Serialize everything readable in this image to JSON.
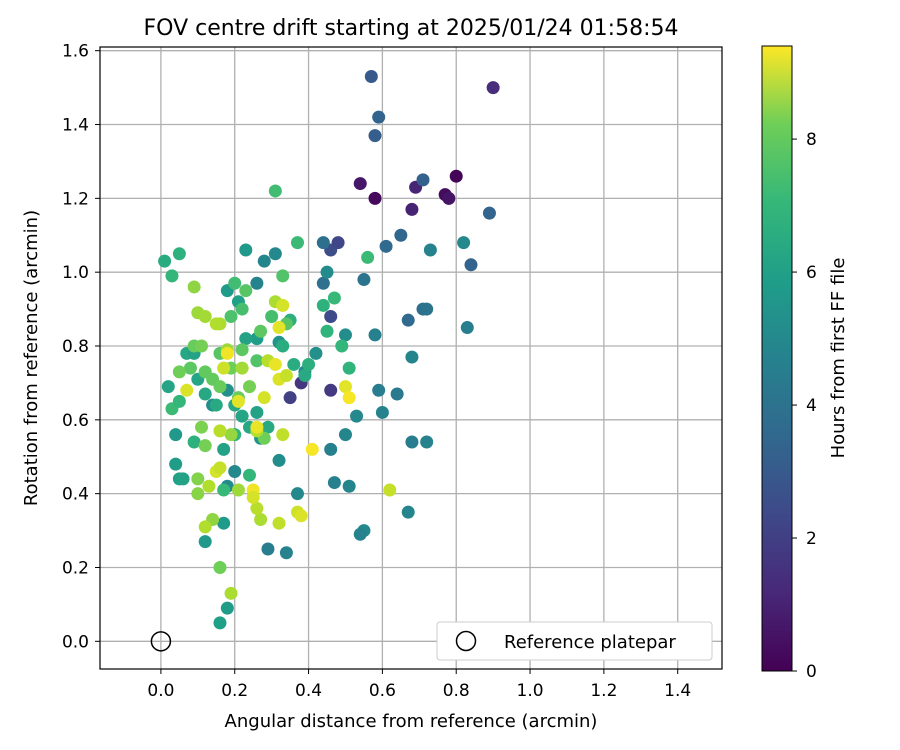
{
  "chart_data": {
    "type": "scatter",
    "title": "FOV centre drift starting at 2025/01/24 01:58:54",
    "xlabel": "Angular distance from reference (arcmin)",
    "ylabel": "Rotation from reference (arcmin)",
    "xlim": [
      -0.165,
      1.52
    ],
    "ylim": [
      -0.075,
      1.61
    ],
    "xticks": [
      0.0,
      0.2,
      0.4,
      0.6,
      0.8,
      1.0,
      1.2,
      1.4
    ],
    "xtick_labels": [
      "0.0",
      "0.2",
      "0.4",
      "0.6",
      "0.8",
      "1.0",
      "1.2",
      "1.4"
    ],
    "yticks": [
      0.0,
      0.2,
      0.4,
      0.6,
      0.8,
      1.0,
      1.2,
      1.4,
      1.6
    ],
    "ytick_labels": [
      "0.0",
      "0.2",
      "0.4",
      "0.6",
      "0.8",
      "1.0",
      "1.2",
      "1.4",
      "1.6"
    ],
    "grid": true,
    "colormap": "viridis",
    "colorbar": {
      "label": "Hours from first FF file",
      "min": 0,
      "max": 9.4,
      "ticks": [
        0,
        2,
        4,
        6,
        8
      ],
      "tick_labels": [
        "0",
        "2",
        "4",
        "6",
        "8"
      ]
    },
    "legend": {
      "position": "lower-right",
      "entries": [
        {
          "label": "Reference platepar",
          "marker": "open-circle"
        }
      ]
    },
    "reference_point": {
      "x": 0.0,
      "y": 0.0
    },
    "points": [
      [
        0.8,
        1.26,
        0.1
      ],
      [
        0.77,
        1.21,
        0.3
      ],
      [
        0.78,
        1.2,
        0.5
      ],
      [
        0.58,
        1.2,
        0.2
      ],
      [
        0.54,
        1.24,
        0.6
      ],
      [
        0.69,
        1.23,
        1.0
      ],
      [
        0.68,
        1.17,
        0.9
      ],
      [
        0.9,
        1.5,
        1.2
      ],
      [
        0.46,
        0.68,
        1.6
      ],
      [
        0.38,
        0.7,
        1.5
      ],
      [
        0.35,
        0.66,
        1.8
      ],
      [
        0.46,
        1.06,
        2.2
      ],
      [
        0.48,
        1.08,
        2.0
      ],
      [
        0.46,
        0.88,
        2.1
      ],
      [
        0.57,
        1.53,
        2.6
      ],
      [
        0.59,
        1.42,
        3.0
      ],
      [
        0.58,
        1.37,
        2.8
      ],
      [
        0.71,
        1.25,
        2.9
      ],
      [
        0.89,
        1.16,
        3.0
      ],
      [
        0.61,
        1.07,
        3.2
      ],
      [
        0.65,
        1.1,
        3.1
      ],
      [
        0.84,
        1.02,
        3.0
      ],
      [
        0.67,
        0.87,
        3.2
      ],
      [
        0.71,
        0.9,
        3.4
      ],
      [
        0.72,
        0.9,
        3.6
      ],
      [
        0.44,
        1.08,
        3.4
      ],
      [
        0.44,
        0.97,
        3.5
      ],
      [
        0.55,
        0.98,
        3.6
      ],
      [
        0.73,
        1.06,
        4.2
      ],
      [
        0.82,
        1.08,
        4.4
      ],
      [
        0.83,
        0.85,
        4.0
      ],
      [
        0.58,
        0.83,
        4.1
      ],
      [
        0.68,
        0.77,
        4.3
      ],
      [
        0.59,
        0.68,
        4.0
      ],
      [
        0.64,
        0.67,
        3.8
      ],
      [
        0.6,
        0.62,
        4.2
      ],
      [
        0.53,
        0.61,
        4.4
      ],
      [
        0.5,
        0.56,
        4.3
      ],
      [
        0.46,
        0.52,
        4.1
      ],
      [
        0.68,
        0.54,
        4.0
      ],
      [
        0.72,
        0.54,
        4.2
      ],
      [
        0.67,
        0.35,
        4.3
      ],
      [
        0.55,
        0.3,
        4.4
      ],
      [
        0.54,
        0.29,
        4.2
      ],
      [
        0.47,
        0.43,
        4.1
      ],
      [
        0.51,
        0.42,
        4.3
      ],
      [
        0.45,
        1.0,
        4.5
      ],
      [
        0.31,
        1.05,
        4.4
      ],
      [
        0.28,
        1.03,
        4.3
      ],
      [
        0.26,
        0.97,
        4.2
      ],
      [
        0.5,
        0.83,
        4.6
      ],
      [
        0.42,
        0.78,
        4.7
      ],
      [
        0.39,
        0.73,
        4.5
      ],
      [
        0.32,
        0.81,
        4.8
      ],
      [
        0.29,
        0.25,
        4.0
      ],
      [
        0.34,
        0.24,
        4.2
      ],
      [
        0.37,
        0.4,
        4.4
      ],
      [
        0.32,
        0.49,
        4.6
      ],
      [
        0.27,
        0.55,
        4.8
      ],
      [
        0.2,
        0.46,
        4.4
      ],
      [
        0.18,
        0.42,
        4.5
      ],
      [
        0.14,
        0.64,
        4.6
      ],
      [
        0.18,
        0.68,
        4.7
      ],
      [
        0.23,
        1.06,
        5.0
      ],
      [
        0.18,
        0.95,
        5.1
      ],
      [
        0.21,
        0.92,
        5.3
      ],
      [
        0.26,
        0.82,
        5.2
      ],
      [
        0.23,
        0.82,
        5.4
      ],
      [
        0.12,
        0.27,
        5.0
      ],
      [
        0.17,
        0.32,
        5.1
      ],
      [
        0.18,
        0.09,
        5.2
      ],
      [
        0.16,
        0.05,
        5.3
      ],
      [
        0.04,
        0.56,
        5.0
      ],
      [
        0.04,
        0.48,
        5.2
      ],
      [
        0.05,
        0.44,
        5.3
      ],
      [
        0.06,
        0.44,
        5.4
      ],
      [
        0.02,
        0.69,
        5.5
      ],
      [
        0.07,
        0.78,
        5.6
      ],
      [
        0.09,
        0.78,
        5.4
      ],
      [
        0.1,
        0.71,
        5.5
      ],
      [
        0.12,
        0.67,
        5.6
      ],
      [
        0.15,
        0.64,
        5.7
      ],
      [
        0.17,
        0.52,
        5.4
      ],
      [
        0.2,
        0.64,
        5.6
      ],
      [
        0.22,
        0.61,
        5.5
      ],
      [
        0.24,
        0.58,
        5.6
      ],
      [
        0.26,
        0.62,
        5.4
      ],
      [
        0.29,
        0.58,
        5.7
      ],
      [
        0.33,
        0.8,
        5.8
      ],
      [
        0.35,
        0.87,
        5.9
      ],
      [
        0.36,
        0.75,
        5.8
      ],
      [
        0.39,
        0.72,
        5.7
      ],
      [
        0.4,
        0.75,
        5.9
      ],
      [
        0.44,
        0.91,
        6.0
      ],
      [
        0.45,
        0.84,
        6.1
      ],
      [
        0.47,
        0.93,
        6.3
      ],
      [
        0.49,
        0.8,
        6.2
      ],
      [
        0.51,
        0.74,
        6.1
      ],
      [
        0.56,
        1.04,
        6.4
      ],
      [
        0.01,
        1.03,
        5.8
      ],
      [
        0.05,
        1.05,
        6.0
      ],
      [
        0.03,
        0.99,
        6.2
      ],
      [
        0.03,
        0.63,
        6.4
      ],
      [
        0.05,
        0.65,
        6.2
      ],
      [
        0.09,
        0.54,
        6.0
      ],
      [
        0.17,
        0.41,
        6.3
      ],
      [
        0.2,
        0.56,
        6.1
      ],
      [
        0.24,
        0.45,
        6.2
      ],
      [
        0.31,
        1.22,
        6.5
      ],
      [
        0.37,
        1.08,
        6.4
      ],
      [
        0.33,
        0.99,
        6.8
      ],
      [
        0.3,
        0.88,
        6.6
      ],
      [
        0.34,
        0.86,
        6.9
      ],
      [
        0.27,
        0.84,
        7.0
      ],
      [
        0.19,
        0.88,
        6.7
      ],
      [
        0.22,
        0.9,
        6.6
      ],
      [
        0.2,
        0.97,
        6.5
      ],
      [
        0.23,
        0.95,
        6.9
      ],
      [
        0.26,
        0.76,
        6.8
      ],
      [
        0.22,
        0.79,
        7.0
      ],
      [
        0.16,
        0.78,
        6.9
      ],
      [
        0.12,
        0.73,
        7.1
      ],
      [
        0.08,
        0.74,
        7.0
      ],
      [
        0.09,
        0.8,
        7.2
      ],
      [
        0.11,
        0.8,
        7.4
      ],
      [
        0.05,
        0.73,
        7.3
      ],
      [
        0.14,
        0.71,
        7.1
      ],
      [
        0.16,
        0.69,
        7.2
      ],
      [
        0.19,
        0.74,
        7.3
      ],
      [
        0.21,
        0.66,
        7.2
      ],
      [
        0.24,
        0.69,
        7.4
      ],
      [
        0.28,
        0.55,
        7.3
      ],
      [
        0.11,
        0.58,
        7.5
      ],
      [
        0.12,
        0.53,
        7.4
      ],
      [
        0.1,
        0.44,
        7.6
      ],
      [
        0.1,
        0.4,
        7.7
      ],
      [
        0.14,
        0.33,
        7.8
      ],
      [
        0.16,
        0.2,
        7.3
      ],
      [
        0.09,
        0.96,
        7.8
      ],
      [
        0.1,
        0.89,
        8.0
      ],
      [
        0.12,
        0.88,
        8.1
      ],
      [
        0.16,
        0.86,
        8.2
      ],
      [
        0.15,
        0.86,
        8.3
      ],
      [
        0.18,
        0.79,
        8.0
      ],
      [
        0.22,
        0.74,
        8.1
      ],
      [
        0.26,
        0.57,
        8.3
      ],
      [
        0.19,
        0.56,
        7.9
      ],
      [
        0.21,
        0.41,
        8.0
      ],
      [
        0.27,
        0.33,
        8.2
      ],
      [
        0.26,
        0.36,
        8.4
      ],
      [
        0.32,
        0.32,
        8.5
      ],
      [
        0.37,
        0.35,
        8.7
      ],
      [
        0.38,
        0.34,
        8.9
      ],
      [
        0.19,
        0.13,
        8.2
      ],
      [
        0.12,
        0.31,
        8.3
      ],
      [
        0.15,
        0.46,
        8.8
      ],
      [
        0.16,
        0.47,
        8.6
      ],
      [
        0.16,
        0.57,
        8.4
      ],
      [
        0.13,
        0.42,
        8.3
      ],
      [
        0.29,
        0.76,
        8.4
      ],
      [
        0.31,
        0.92,
        8.2
      ],
      [
        0.33,
        0.91,
        8.8
      ],
      [
        0.32,
        0.71,
        8.9
      ],
      [
        0.31,
        0.75,
        9.1
      ],
      [
        0.34,
        0.72,
        8.6
      ],
      [
        0.33,
        0.56,
        8.5
      ],
      [
        0.26,
        0.58,
        9.1
      ],
      [
        0.21,
        0.65,
        9.0
      ],
      [
        0.25,
        0.41,
        9.2
      ],
      [
        0.25,
        0.39,
        8.8
      ],
      [
        0.32,
        0.85,
        9.0
      ],
      [
        0.41,
        0.52,
        9.3
      ],
      [
        0.5,
        0.69,
        9.0
      ],
      [
        0.51,
        0.66,
        9.3
      ],
      [
        0.62,
        0.41,
        8.6
      ],
      [
        0.07,
        0.68,
        8.9
      ],
      [
        0.18,
        0.78,
        9.2
      ],
      [
        0.17,
        0.74,
        8.7
      ],
      [
        0.28,
        0.66,
        8.8
      ]
    ]
  }
}
